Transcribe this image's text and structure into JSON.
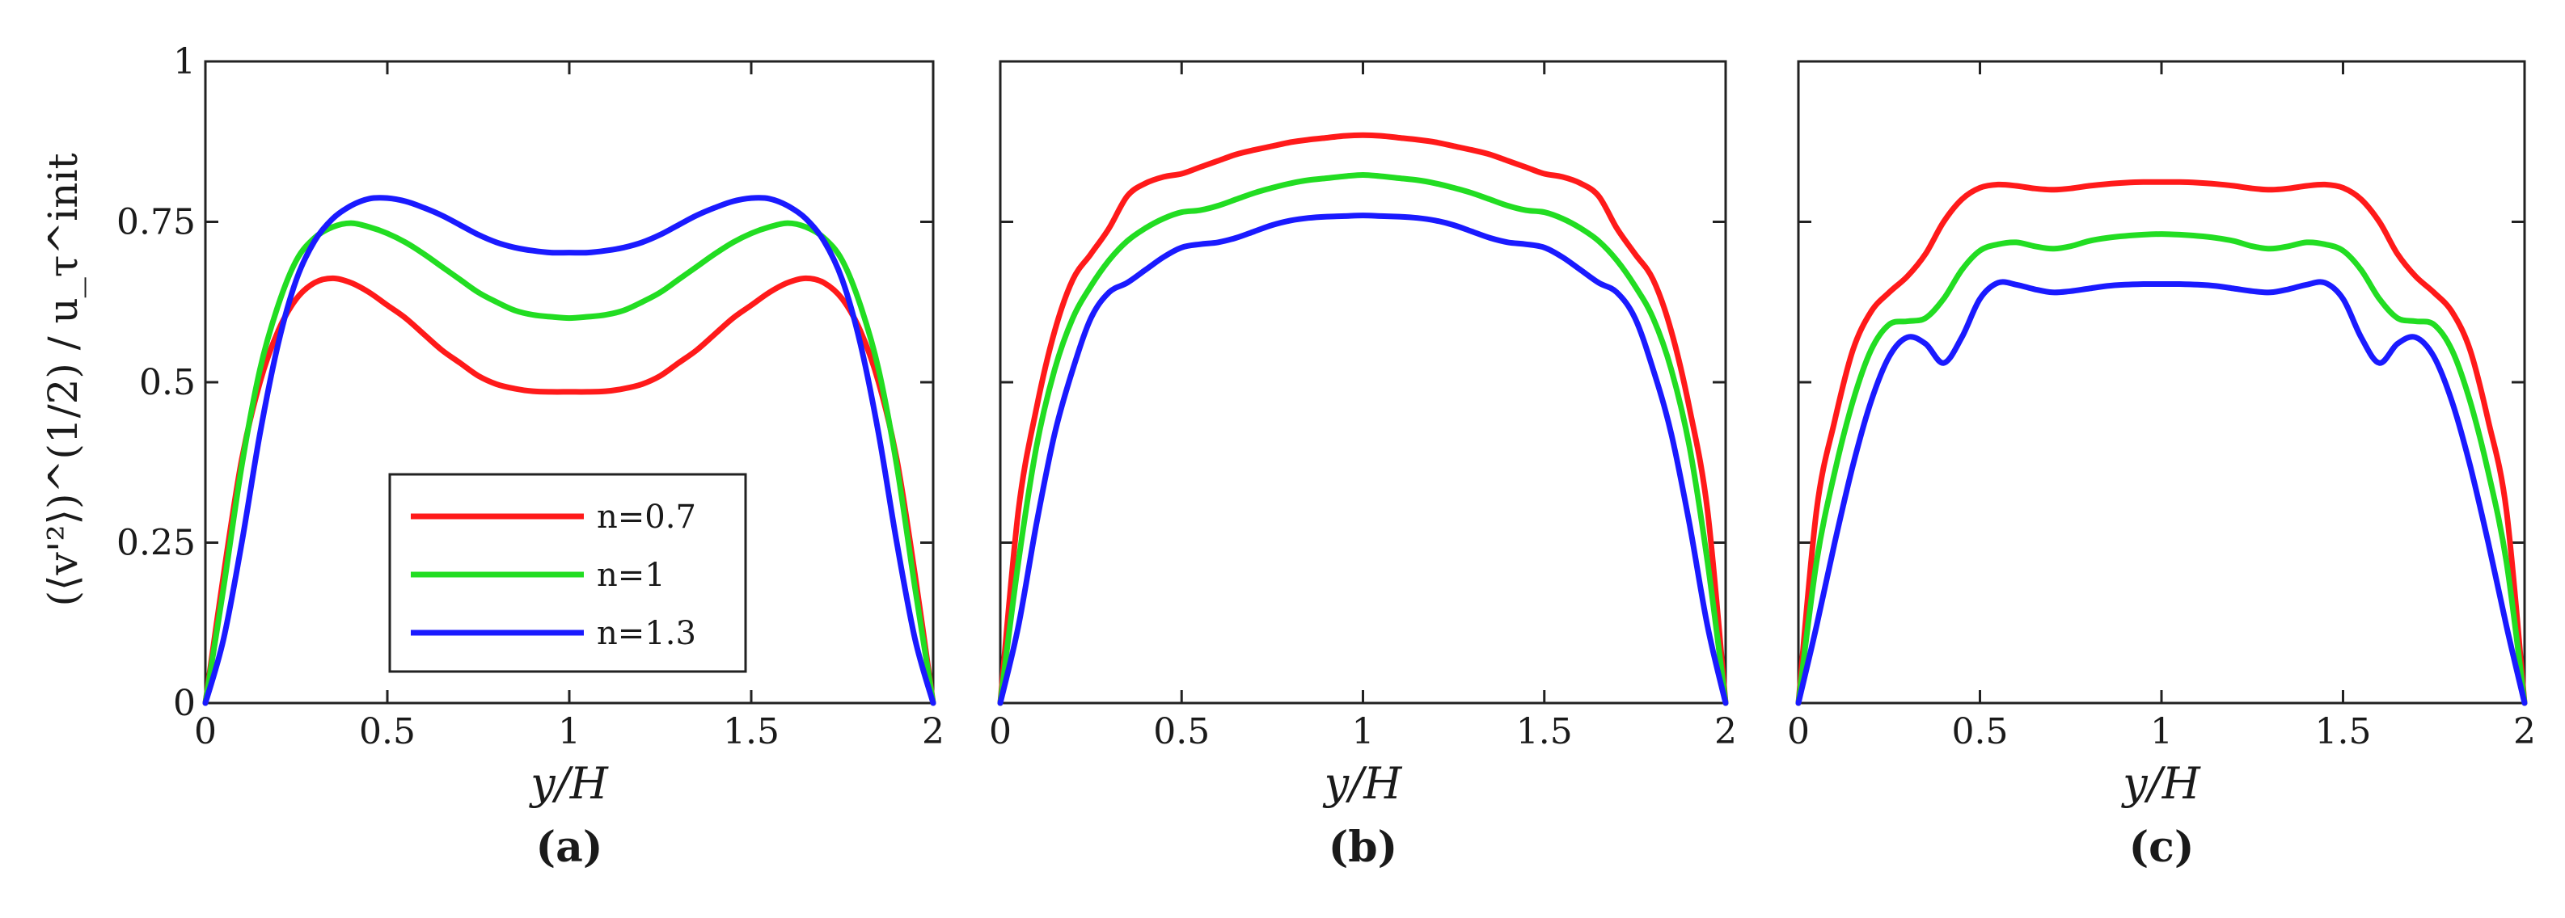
{
  "chart_data": [
    {
      "type": "line",
      "panel_label": "(a)",
      "xlabel": "y/H",
      "ylabel": "(⟨v'²⟩)^(1/2) / u_τ^init",
      "xlim": [
        0,
        2
      ],
      "ylim": [
        0,
        1
      ],
      "xticks": [
        "0",
        "0.5",
        "1",
        "1.5",
        "2"
      ],
      "yticks": [
        "0",
        "0.25",
        "0.5",
        "0.75",
        "1"
      ],
      "legend": {
        "placement": "lower-left",
        "entries": [
          "n=0.7",
          "n=1",
          "n=1.3"
        ]
      },
      "x": [
        0,
        0.05,
        0.1,
        0.15,
        0.2,
        0.25,
        0.3,
        0.35,
        0.4,
        0.45,
        0.5,
        0.55,
        0.6,
        0.65,
        0.7,
        0.75,
        0.8,
        0.85,
        0.9,
        0.95,
        1.0,
        1.05,
        1.1,
        1.15,
        1.2,
        1.25,
        1.3,
        1.35,
        1.4,
        1.45,
        1.5,
        1.55,
        1.6,
        1.65,
        1.7,
        1.75,
        1.8,
        1.85,
        1.9,
        1.95,
        2.0
      ],
      "series": [
        {
          "name": "n=0.7",
          "color": "#ff1a1a",
          "values": [
            0,
            0.2,
            0.38,
            0.5,
            0.58,
            0.63,
            0.655,
            0.662,
            0.655,
            0.64,
            0.62,
            0.6,
            0.575,
            0.55,
            0.53,
            0.51,
            0.497,
            0.49,
            0.486,
            0.485,
            0.485,
            0.485,
            0.486,
            0.49,
            0.497,
            0.51,
            0.53,
            0.55,
            0.575,
            0.6,
            0.62,
            0.64,
            0.655,
            0.662,
            0.655,
            0.63,
            0.58,
            0.5,
            0.38,
            0.2,
            0
          ]
        },
        {
          "name": "n=1",
          "color": "#22dd22",
          "values": [
            0,
            0.18,
            0.37,
            0.52,
            0.62,
            0.69,
            0.725,
            0.742,
            0.748,
            0.742,
            0.732,
            0.718,
            0.7,
            0.68,
            0.66,
            0.64,
            0.625,
            0.612,
            0.605,
            0.602,
            0.6,
            0.602,
            0.605,
            0.612,
            0.625,
            0.64,
            0.66,
            0.68,
            0.7,
            0.718,
            0.732,
            0.742,
            0.748,
            0.742,
            0.725,
            0.69,
            0.62,
            0.52,
            0.37,
            0.18,
            0
          ]
        },
        {
          "name": "n=1.3",
          "color": "#1a1aff",
          "values": [
            0,
            0.1,
            0.25,
            0.42,
            0.56,
            0.66,
            0.72,
            0.755,
            0.775,
            0.786,
            0.787,
            0.782,
            0.772,
            0.76,
            0.745,
            0.73,
            0.718,
            0.71,
            0.705,
            0.702,
            0.702,
            0.702,
            0.705,
            0.71,
            0.718,
            0.73,
            0.745,
            0.76,
            0.772,
            0.782,
            0.787,
            0.786,
            0.775,
            0.755,
            0.72,
            0.66,
            0.56,
            0.42,
            0.25,
            0.1,
            0
          ]
        }
      ]
    },
    {
      "type": "line",
      "panel_label": "(b)",
      "xlabel": "y/H",
      "xlim": [
        0,
        2
      ],
      "ylim": [
        0,
        1
      ],
      "xticks": [
        "0",
        "0.5",
        "1",
        "1.5",
        "2"
      ],
      "x": [
        0,
        0.05,
        0.1,
        0.15,
        0.2,
        0.25,
        0.3,
        0.35,
        0.4,
        0.45,
        0.5,
        0.55,
        0.6,
        0.65,
        0.7,
        0.75,
        0.8,
        0.85,
        0.9,
        0.95,
        1.0,
        1.05,
        1.1,
        1.15,
        1.2,
        1.25,
        1.3,
        1.35,
        1.4,
        1.45,
        1.5,
        1.55,
        1.6,
        1.65,
        1.7,
        1.75,
        1.8,
        1.85,
        1.9,
        1.95,
        2.0
      ],
      "series": [
        {
          "name": "n=0.7",
          "color": "#ff1a1a",
          "values": [
            0,
            0.3,
            0.46,
            0.58,
            0.66,
            0.7,
            0.74,
            0.79,
            0.81,
            0.82,
            0.825,
            0.835,
            0.845,
            0.855,
            0.862,
            0.868,
            0.874,
            0.878,
            0.881,
            0.884,
            0.885,
            0.884,
            0.881,
            0.878,
            0.874,
            0.868,
            0.862,
            0.855,
            0.845,
            0.835,
            0.825,
            0.82,
            0.81,
            0.79,
            0.74,
            0.7,
            0.66,
            0.58,
            0.46,
            0.3,
            0
          ]
        },
        {
          "name": "n=1",
          "color": "#22dd22",
          "values": [
            0,
            0.22,
            0.4,
            0.52,
            0.6,
            0.65,
            0.69,
            0.72,
            0.74,
            0.755,
            0.765,
            0.768,
            0.775,
            0.785,
            0.795,
            0.803,
            0.81,
            0.815,
            0.818,
            0.821,
            0.823,
            0.821,
            0.818,
            0.815,
            0.81,
            0.803,
            0.795,
            0.785,
            0.775,
            0.768,
            0.765,
            0.755,
            0.74,
            0.72,
            0.69,
            0.65,
            0.6,
            0.52,
            0.4,
            0.22,
            0
          ]
        },
        {
          "name": "n=1.3",
          "color": "#1a1aff",
          "values": [
            0,
            0.12,
            0.28,
            0.42,
            0.52,
            0.6,
            0.64,
            0.655,
            0.675,
            0.695,
            0.71,
            0.715,
            0.718,
            0.725,
            0.735,
            0.745,
            0.752,
            0.756,
            0.758,
            0.759,
            0.76,
            0.759,
            0.758,
            0.756,
            0.752,
            0.745,
            0.735,
            0.725,
            0.718,
            0.715,
            0.71,
            0.695,
            0.675,
            0.655,
            0.64,
            0.6,
            0.52,
            0.42,
            0.28,
            0.12,
            0
          ]
        }
      ]
    },
    {
      "type": "line",
      "panel_label": "(c)",
      "xlabel": "y/H",
      "xlim": [
        0,
        2
      ],
      "ylim": [
        0,
        1
      ],
      "xticks": [
        "0",
        "0.5",
        "1",
        "1.5",
        "2"
      ],
      "x": [
        0,
        0.05,
        0.1,
        0.15,
        0.2,
        0.25,
        0.3,
        0.35,
        0.4,
        0.45,
        0.5,
        0.55,
        0.6,
        0.65,
        0.7,
        0.75,
        0.8,
        0.85,
        0.9,
        0.95,
        1.0,
        1.05,
        1.1,
        1.15,
        1.2,
        1.25,
        1.3,
        1.35,
        1.4,
        1.45,
        1.5,
        1.55,
        1.6,
        1.65,
        1.7,
        1.75,
        1.8,
        1.85,
        1.9,
        1.95,
        2.0
      ],
      "series": [
        {
          "name": "n=0.7",
          "color": "#ff1a1a",
          "values": [
            0,
            0.3,
            0.44,
            0.55,
            0.61,
            0.64,
            0.665,
            0.7,
            0.75,
            0.785,
            0.803,
            0.808,
            0.806,
            0.802,
            0.8,
            0.802,
            0.806,
            0.809,
            0.811,
            0.812,
            0.812,
            0.812,
            0.811,
            0.809,
            0.806,
            0.802,
            0.8,
            0.802,
            0.806,
            0.808,
            0.803,
            0.785,
            0.75,
            0.7,
            0.665,
            0.64,
            0.61,
            0.55,
            0.44,
            0.3,
            0
          ]
        },
        {
          "name": "n=1",
          "color": "#22dd22",
          "values": [
            0,
            0.22,
            0.36,
            0.47,
            0.55,
            0.59,
            0.595,
            0.6,
            0.63,
            0.675,
            0.705,
            0.715,
            0.718,
            0.712,
            0.708,
            0.712,
            0.72,
            0.725,
            0.728,
            0.73,
            0.731,
            0.73,
            0.728,
            0.725,
            0.72,
            0.712,
            0.708,
            0.712,
            0.718,
            0.715,
            0.705,
            0.675,
            0.63,
            0.6,
            0.595,
            0.59,
            0.55,
            0.47,
            0.36,
            0.22,
            0
          ]
        },
        {
          "name": "n=1.3",
          "color": "#1a1aff",
          "values": [
            0,
            0.12,
            0.25,
            0.37,
            0.47,
            0.54,
            0.57,
            0.56,
            0.53,
            0.57,
            0.63,
            0.655,
            0.652,
            0.645,
            0.64,
            0.642,
            0.646,
            0.65,
            0.652,
            0.653,
            0.653,
            0.653,
            0.652,
            0.65,
            0.646,
            0.642,
            0.64,
            0.645,
            0.652,
            0.655,
            0.63,
            0.57,
            0.53,
            0.56,
            0.57,
            0.54,
            0.47,
            0.37,
            0.25,
            0.12,
            0
          ]
        }
      ]
    }
  ]
}
